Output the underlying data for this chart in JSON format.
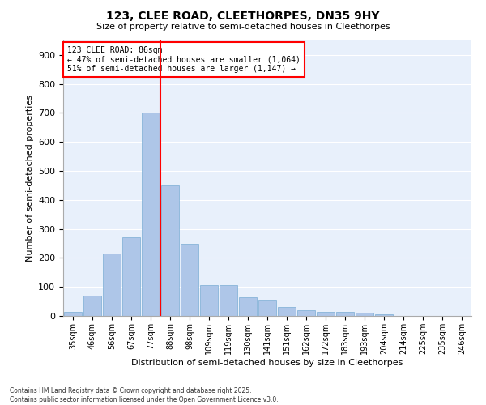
{
  "title1": "123, CLEE ROAD, CLEETHORPES, DN35 9HY",
  "title2": "Size of property relative to semi-detached houses in Cleethorpes",
  "xlabel": "Distribution of semi-detached houses by size in Cleethorpes",
  "ylabel": "Number of semi-detached properties",
  "categories": [
    "35sqm",
    "46sqm",
    "56sqm",
    "67sqm",
    "77sqm",
    "88sqm",
    "98sqm",
    "109sqm",
    "119sqm",
    "130sqm",
    "141sqm",
    "151sqm",
    "162sqm",
    "172sqm",
    "183sqm",
    "193sqm",
    "204sqm",
    "214sqm",
    "225sqm",
    "235sqm",
    "246sqm"
  ],
  "values": [
    15,
    70,
    215,
    270,
    700,
    450,
    250,
    105,
    105,
    65,
    55,
    30,
    20,
    15,
    15,
    10,
    5,
    0,
    0,
    0,
    0
  ],
  "bar_color": "#aec6e8",
  "bar_edge_color": "#7aadd4",
  "vline_x": 5,
  "vline_color": "red",
  "annotation_title": "123 CLEE ROAD: 86sqm",
  "annotation_line1": "← 47% of semi-detached houses are smaller (1,064)",
  "annotation_line2": "51% of semi-detached houses are larger (1,147) →",
  "annotation_box_color": "red",
  "ylim": [
    0,
    950
  ],
  "yticks": [
    0,
    100,
    200,
    300,
    400,
    500,
    600,
    700,
    800,
    900
  ],
  "background_color": "#e8f0fb",
  "footnote1": "Contains HM Land Registry data © Crown copyright and database right 2025.",
  "footnote2": "Contains public sector information licensed under the Open Government Licence v3.0."
}
